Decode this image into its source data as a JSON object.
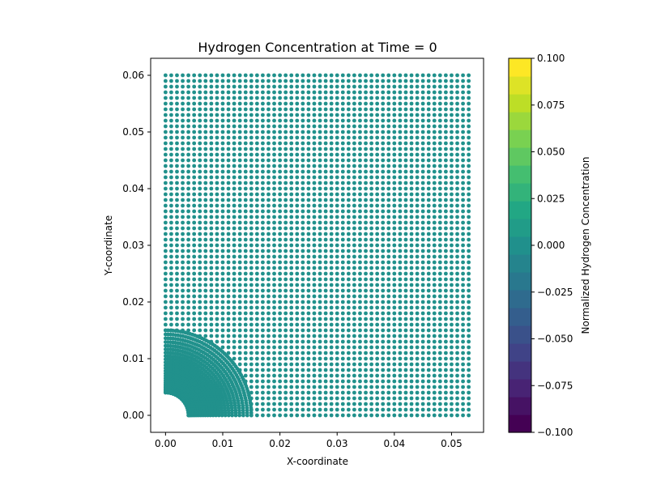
{
  "chart_data": {
    "type": "scatter",
    "title": "Hydrogen Concentration at Time = 0",
    "xlabel": "X-coordinate",
    "ylabel": "Y-coordinate",
    "xlim": [
      -0.0026,
      0.0556
    ],
    "ylim": [
      -0.003,
      0.063
    ],
    "xticks": [
      0.0,
      0.01,
      0.02,
      0.03,
      0.04,
      0.05
    ],
    "xtick_labels": [
      "0.00",
      "0.01",
      "0.02",
      "0.03",
      "0.04",
      "0.05"
    ],
    "yticks": [
      0.0,
      0.01,
      0.02,
      0.03,
      0.04,
      0.05,
      0.06
    ],
    "ytick_labels": [
      "0.00",
      "0.01",
      "0.02",
      "0.03",
      "0.04",
      "0.05",
      "0.06"
    ],
    "point_color": "#21918c",
    "grid": false,
    "mesh": {
      "regular_grid": {
        "x_min": 0.0,
        "x_max": 0.053,
        "y_min": 0.0,
        "y_max": 0.06,
        "spacing": 0.001
      },
      "hole_radius": 0.004,
      "refined_region_radius": 0.015,
      "all_values": 0.0
    },
    "colorbar": {
      "label": "Normalized Hydrogen Concentration",
      "colormap": "viridis",
      "vmin": -0.1,
      "vmax": 0.1,
      "levels": 21,
      "ticks": [
        0.1,
        0.075,
        0.05,
        0.025,
        0.0,
        -0.025,
        -0.05,
        -0.075,
        -0.1
      ],
      "tick_labels": [
        "0.100",
        "0.075",
        "0.050",
        "0.025",
        "0.000",
        "−0.025",
        "−0.050",
        "−0.075",
        "−0.100"
      ]
    }
  }
}
